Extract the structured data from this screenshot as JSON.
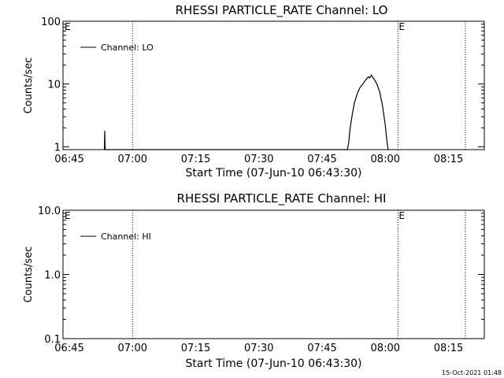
{
  "footer_stamp": "15-Oct-2021 01:48",
  "chart_data": [
    {
      "type": "line",
      "title": "RHESSI PARTICLE_RATE Channel: LO",
      "xlabel": "Start Time (07-Jun-10 06:43:30)",
      "ylabel": "Counts/sec",
      "yscale": "log",
      "ylim": [
        0.9,
        100
      ],
      "xlim_minutes_since_start": [
        0,
        100
      ],
      "x_ticks": [
        "06:45",
        "07:00",
        "07:15",
        "07:30",
        "07:45",
        "08:00",
        "08:15"
      ],
      "y_ticks": [
        "1",
        "10",
        "100"
      ],
      "legend": "Channel: LO",
      "markers": [
        {
          "time": "07:00",
          "label": ""
        },
        {
          "time": "08:03",
          "label": "E"
        },
        {
          "time": "08:19",
          "label": ""
        }
      ],
      "start_marker_label": "E",
      "series": [
        {
          "name": "Channel: LO",
          "points": [
            [
              "06:53:20",
              0.9
            ],
            [
              "06:53:24",
              1.8
            ],
            [
              "06:53:30",
              0.9
            ],
            [
              "07:51:00",
              0.9
            ],
            [
              "07:51:20",
              1.2
            ],
            [
              "07:51:40",
              2.0
            ],
            [
              "07:52:10",
              3.3
            ],
            [
              "07:52:40",
              5.0
            ],
            [
              "07:53:20",
              7.0
            ],
            [
              "07:54:00",
              8.8
            ],
            [
              "07:54:40",
              10.0
            ],
            [
              "07:55:20",
              11.6
            ],
            [
              "07:56:00",
              13.0
            ],
            [
              "07:56:20",
              12.5
            ],
            [
              "07:56:40",
              13.8
            ],
            [
              "07:57:20",
              12.0
            ],
            [
              "07:58:00",
              10.0
            ],
            [
              "07:58:40",
              7.5
            ],
            [
              "07:59:20",
              4.5
            ],
            [
              "08:00:00",
              2.2
            ],
            [
              "08:00:20",
              1.3
            ],
            [
              "08:00:40",
              0.9
            ]
          ]
        }
      ]
    },
    {
      "type": "line",
      "title": "RHESSI PARTICLE_RATE Channel: HI",
      "xlabel": "Start Time (07-Jun-10 06:43:30)",
      "ylabel": "Counts/sec",
      "yscale": "log",
      "ylim": [
        0.1,
        10
      ],
      "xlim_minutes_since_start": [
        0,
        100
      ],
      "x_ticks": [
        "06:45",
        "07:00",
        "07:15",
        "07:30",
        "07:45",
        "08:00",
        "08:15"
      ],
      "y_ticks": [
        "0.1",
        "1.0",
        "10.0"
      ],
      "legend": "Channel: HI",
      "markers": [
        {
          "time": "07:00",
          "label": ""
        },
        {
          "time": "08:03",
          "label": "E"
        },
        {
          "time": "08:19",
          "label": ""
        }
      ],
      "start_marker_label": "E",
      "series": [
        {
          "name": "Channel: HI",
          "points": []
        }
      ]
    }
  ]
}
